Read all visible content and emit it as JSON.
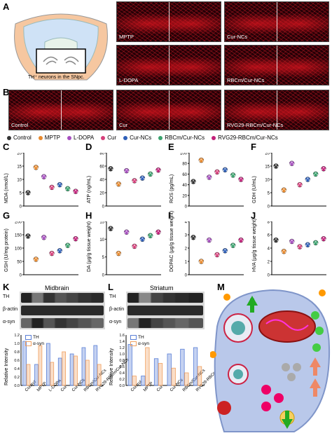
{
  "panel_letters": [
    "A",
    "B",
    "C",
    "D",
    "E",
    "F",
    "G",
    "H",
    "I",
    "J",
    "K",
    "L",
    "M"
  ],
  "schematic_caption": "TH⁺ neurons in the SNpc.",
  "micrographs": [
    {
      "label": "MPTP"
    },
    {
      "label": "Cur-NCs"
    },
    {
      "label": "L-DOPA"
    },
    {
      "label": "RBCm/Cur-NCs"
    },
    {
      "label": "Control"
    },
    {
      "label": "Cur"
    },
    {
      "label": "RVG29-RBCm/Cur-NCs"
    }
  ],
  "legend": [
    {
      "label": "Control",
      "color": "#333333"
    },
    {
      "label": "MPTP",
      "color": "#e88a2e"
    },
    {
      "label": "L-DOPA",
      "color": "#a64fbf"
    },
    {
      "label": "Cur",
      "color": "#d63f7a"
    },
    {
      "label": "Cur-NCs",
      "color": "#2e5fb8"
    },
    {
      "label": "RBCm/Cur-NCs",
      "color": "#3aa36e"
    },
    {
      "label": "RVG29-RBCm/Cur-NCs",
      "color": "#c2207a"
    }
  ],
  "chart_data": [
    {
      "panel": "C",
      "type": "scatter",
      "ylabel": "MDA (nmol/L)",
      "ylim": [
        0,
        20
      ],
      "yticks": [
        "0",
        "5",
        "10",
        "15",
        "20"
      ],
      "values": [
        5,
        14.5,
        11,
        7,
        8,
        6.5,
        5.5
      ]
    },
    {
      "panel": "D",
      "type": "scatter",
      "ylabel": "ATP (ng/mL)",
      "ylim": [
        0,
        80
      ],
      "yticks": [
        "0",
        "20",
        "40",
        "60",
        "80"
      ],
      "values": [
        56,
        33,
        53,
        38,
        42,
        48,
        54
      ]
    },
    {
      "panel": "E",
      "type": "scatter",
      "ylabel": "ROS (pg/mL)",
      "ylim": [
        0,
        100
      ],
      "yticks": [
        "0",
        "20",
        "40",
        "60",
        "80",
        "100"
      ],
      "values": [
        46,
        86,
        54,
        64,
        68,
        58,
        50
      ]
    },
    {
      "panel": "F",
      "type": "scatter",
      "ylabel": "GDH (U/mL)",
      "ylim": [
        0,
        20
      ],
      "yticks": [
        "0",
        "5",
        "10",
        "15",
        "20"
      ],
      "values": [
        15,
        6,
        16,
        8,
        10,
        12,
        14
      ]
    },
    {
      "panel": "G",
      "type": "scatter",
      "ylabel": "GSH (U/mg protein)",
      "ylim": [
        0,
        200
      ],
      "yticks": [
        "0",
        "50",
        "100",
        "150",
        "200"
      ],
      "values": [
        145,
        58,
        140,
        80,
        90,
        110,
        135
      ]
    },
    {
      "panel": "H",
      "type": "scatter",
      "ylabel": "DA (μg/g tissue weight)",
      "ylim": [
        0,
        15
      ],
      "yticks": [
        "0",
        "5",
        "10",
        "15"
      ],
      "values": [
        13,
        6,
        12,
        8,
        10,
        11,
        12
      ]
    },
    {
      "panel": "I",
      "type": "scatter",
      "ylabel": "DOPAC (μg/g tissue weight)",
      "ylim": [
        0,
        4
      ],
      "yticks": [
        "0",
        "1",
        "2",
        "3",
        "4"
      ],
      "values": [
        2.8,
        1,
        2.6,
        1.5,
        1.8,
        2.2,
        2.6
      ]
    },
    {
      "panel": "J",
      "type": "scatter",
      "ylabel": "HVA (μg/g tissue weight)",
      "ylim": [
        0,
        8
      ],
      "yticks": [
        "0",
        "2",
        "4",
        "6",
        "8"
      ],
      "values": [
        5.2,
        3.5,
        5.0,
        4.2,
        4.5,
        4.8,
        5.4
      ]
    },
    {
      "panel": "K",
      "type": "bar",
      "title": "Midbrain",
      "ylabel": "Relative Intensity",
      "ylim": [
        0,
        1.2
      ],
      "yticks": [
        "0.0",
        "0.2",
        "0.4",
        "0.6",
        "0.8",
        "1.0",
        "1.2"
      ],
      "categories": [
        "Control",
        "MPTP",
        "L-DOPA",
        "Cur",
        "Cur-NCs",
        "RBCm/Cur-NCs",
        "RVG29-RBCm/Cur-NCs"
      ],
      "series": [
        {
          "name": "TH",
          "values": [
            1.05,
            0.5,
            1.0,
            0.65,
            0.75,
            0.9,
            0.95
          ]
        },
        {
          "name": "α-syn",
          "values": [
            0.5,
            0.95,
            0.55,
            0.8,
            0.7,
            0.6,
            0.5
          ]
        }
      ]
    },
    {
      "panel": "L",
      "type": "bar",
      "title": "Striatum",
      "ylabel": "Relative Intensity",
      "ylim": [
        0,
        1.6
      ],
      "yticks": [
        "0.0",
        "0.2",
        "0.4",
        "0.6",
        "0.8",
        "1.0",
        "1.2",
        "1.4",
        "1.6"
      ],
      "categories": [
        "Control",
        "MPTP",
        "Cur",
        "Cur-NCs",
        "RBCm/Cur-NCs",
        "RVG29-RBCm/Cur-NCs"
      ],
      "series": [
        {
          "name": "TH",
          "values": [
            1.3,
            0.3,
            0.85,
            1.0,
            1.15,
            1.2
          ]
        },
        {
          "name": "α-syn",
          "values": [
            0.3,
            1.2,
            0.7,
            0.55,
            0.4,
            0.6
          ]
        }
      ]
    }
  ],
  "blot_labels": [
    "TH",
    "β-actin",
    "α-syn"
  ],
  "legend_kl": [
    {
      "label": "TH"
    },
    {
      "label": "α-syn"
    }
  ],
  "colors": {
    "th_bar": "#5a7fd6",
    "asyn_bar": "#f0a060"
  }
}
